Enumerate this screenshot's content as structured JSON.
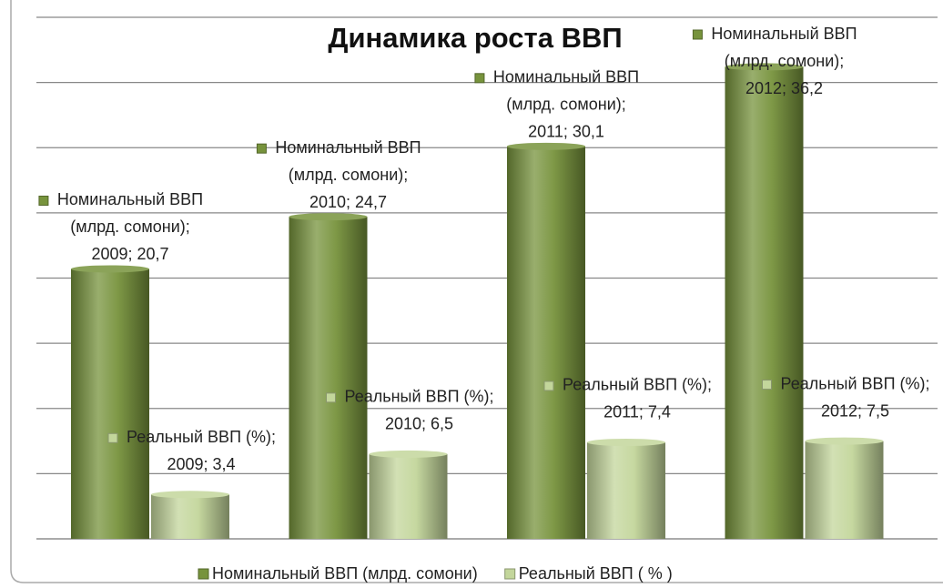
{
  "chart_data": {
    "type": "bar",
    "title": "Динамика роста ВВП",
    "series": [
      {
        "name": "Номинальный ВВП (млрд. сомони)",
        "color": "#77933c",
        "values": [
          20.7,
          24.7,
          30.1,
          36.2
        ],
        "value_labels": [
          [
            "Номинальный ВВП",
            "(млрд. сомони);",
            "2009; 20,7"
          ],
          [
            "Номинальный ВВП",
            "(млрд. сомони);",
            "2010; 24,7"
          ],
          [
            "Номинальный ВВП",
            "(млрд. сомони);",
            "2011; 30,1"
          ],
          [
            "Номинальный ВВП",
            "(млрд. сомони);",
            "2012; 36,2"
          ]
        ]
      },
      {
        "name": "Реальный ВВП ( % )",
        "color": "#c3d69b",
        "values": [
          3.4,
          6.5,
          7.4,
          7.5
        ],
        "value_labels": [
          [
            "Реальный ВВП (%);",
            "2009; 3,4"
          ],
          [
            "Реальный ВВП (%);",
            "2010; 6,5"
          ],
          [
            "Реальный ВВП (%);",
            "2011; 7,4"
          ],
          [
            "Реальный ВВП (%);",
            "2012; 7,5"
          ]
        ]
      }
    ],
    "ylim": [
      0,
      40
    ],
    "yticks": [
      0,
      5,
      10,
      15,
      20,
      25,
      30,
      35,
      40
    ],
    "grid": true,
    "legend": "bottom"
  }
}
